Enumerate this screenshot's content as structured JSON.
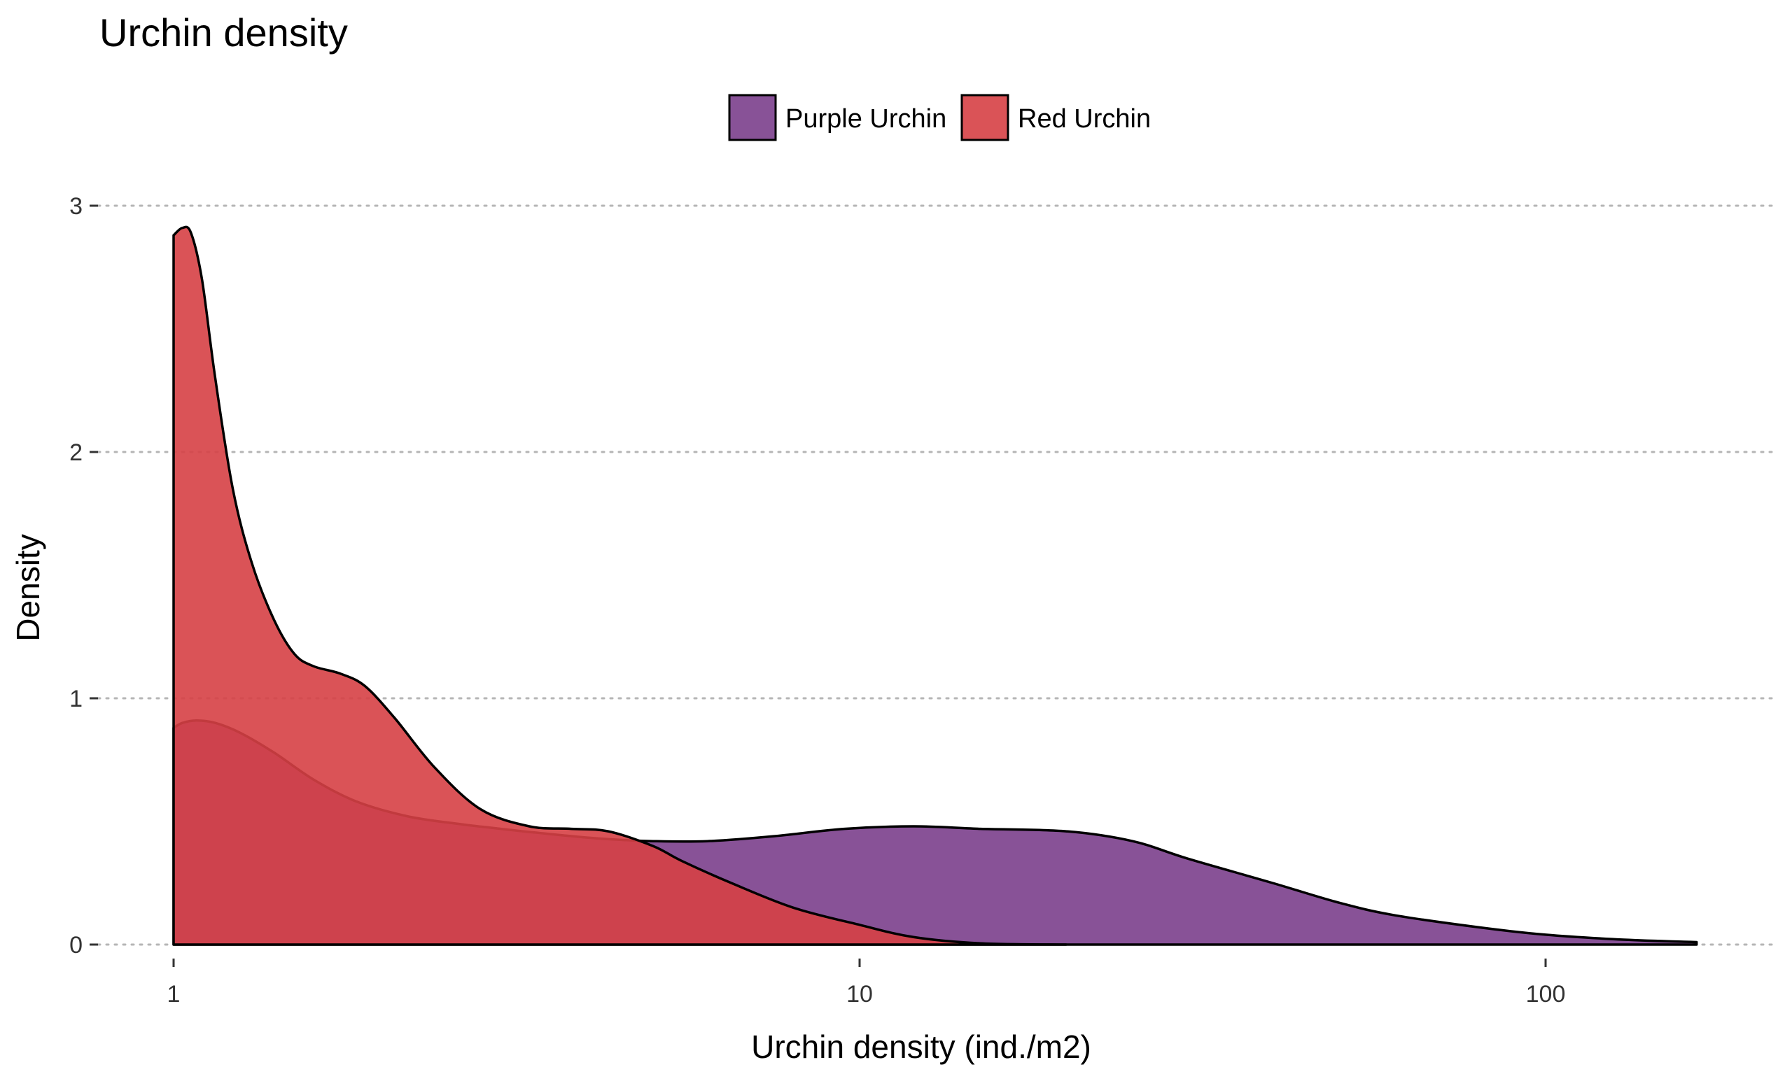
{
  "chart_data": {
    "type": "area",
    "title": "Urchin density",
    "xlabel": "Urchin density (ind./m2)",
    "ylabel": "Density",
    "x_scale": "log10",
    "xlim": [
      0.88,
      230
    ],
    "ylim": [
      0,
      3.3
    ],
    "x_ticks": [
      1,
      10,
      100
    ],
    "x_tick_labels": [
      "1",
      "10",
      "100"
    ],
    "y_ticks": [
      0,
      1,
      2,
      3
    ],
    "y_tick_labels": [
      "0",
      "1",
      "2",
      "3"
    ],
    "grid": "horizontal dotted",
    "legend_position": "top",
    "colors": {
      "purple": "#7b3f8c",
      "red": "#d64045"
    },
    "series": [
      {
        "name": "Purple Urchin",
        "color": "#7b3f8c",
        "opacity": 0.9,
        "x": [
          1,
          1.03,
          1.08,
          1.15,
          1.25,
          1.4,
          1.6,
          1.85,
          2.2,
          2.6,
          3.0,
          3.5,
          4.2,
          5.0,
          6.0,
          7.5,
          9.5,
          12,
          15,
          20,
          25,
          30,
          40,
          50,
          60,
          80,
          100,
          130,
          166
        ],
        "y": [
          0.88,
          0.9,
          0.91,
          0.9,
          0.86,
          0.78,
          0.67,
          0.58,
          0.52,
          0.49,
          0.47,
          0.45,
          0.43,
          0.42,
          0.42,
          0.44,
          0.47,
          0.48,
          0.47,
          0.46,
          0.42,
          0.35,
          0.25,
          0.17,
          0.12,
          0.07,
          0.04,
          0.02,
          0.01
        ]
      },
      {
        "name": "Red Urchin",
        "color": "#d64045",
        "opacity": 0.9,
        "x": [
          1,
          1.03,
          1.06,
          1.1,
          1.15,
          1.22,
          1.3,
          1.4,
          1.5,
          1.6,
          1.75,
          1.9,
          2.1,
          2.4,
          2.8,
          3.3,
          3.8,
          4.3,
          5.0,
          5.5,
          6.5,
          8.0,
          10,
          12,
          15,
          20
        ],
        "y": [
          2.88,
          2.91,
          2.89,
          2.7,
          2.3,
          1.85,
          1.55,
          1.32,
          1.18,
          1.13,
          1.1,
          1.05,
          0.92,
          0.72,
          0.55,
          0.48,
          0.47,
          0.46,
          0.4,
          0.34,
          0.25,
          0.15,
          0.08,
          0.03,
          0.005,
          0
        ]
      }
    ]
  }
}
